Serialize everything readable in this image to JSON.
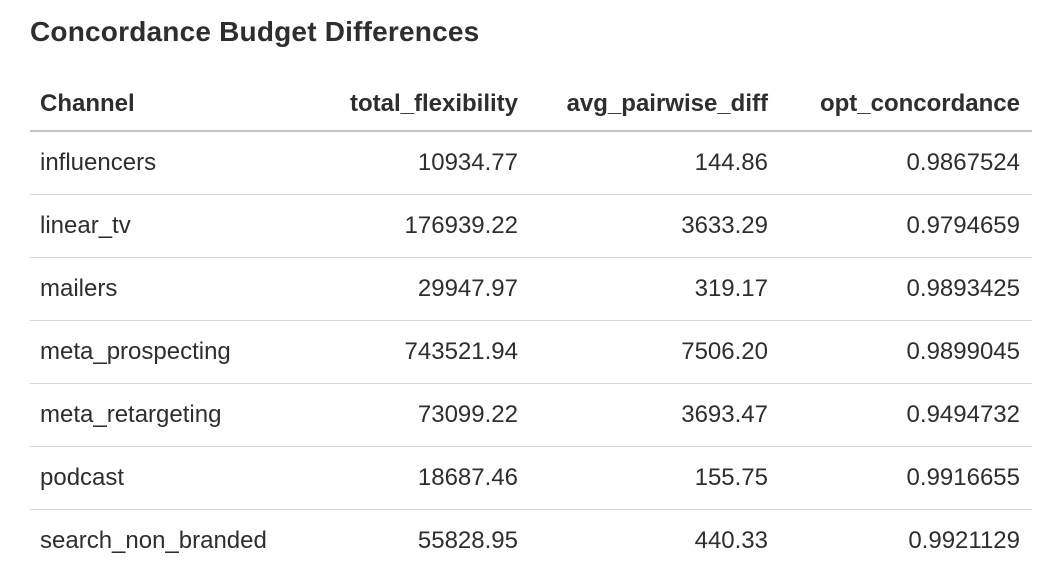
{
  "page": {
    "title": "Concordance Budget Differences"
  },
  "colors": {
    "text": "#2e2e2e",
    "background": "#ffffff",
    "header_border": "#c3c3c3",
    "row_border": "#d6d6d6"
  },
  "table": {
    "columns": [
      {
        "key": "channel",
        "label": "Channel",
        "align": "left"
      },
      {
        "key": "total_flexibility",
        "label": "total_flexibility",
        "align": "right"
      },
      {
        "key": "avg_pairwise_diff",
        "label": "avg_pairwise_diff",
        "align": "right"
      },
      {
        "key": "opt_concordance",
        "label": "opt_concordance",
        "align": "right"
      }
    ],
    "rows": [
      [
        "influencers",
        "10934.77",
        "144.86",
        "0.9867524"
      ],
      [
        "linear_tv",
        "176939.22",
        "3633.29",
        "0.9794659"
      ],
      [
        "mailers",
        "29947.97",
        "319.17",
        "0.9893425"
      ],
      [
        "meta_prospecting",
        "743521.94",
        "7506.20",
        "0.9899045"
      ],
      [
        "meta_retargeting",
        "73099.22",
        "3693.47",
        "0.9494732"
      ],
      [
        "podcast",
        "18687.46",
        "155.75",
        "0.9916655"
      ],
      [
        "search_non_branded",
        "55828.95",
        "440.33",
        "0.9921129"
      ]
    ]
  },
  "chart_data": {
    "type": "table",
    "title": "Concordance Budget Differences",
    "columns": [
      "Channel",
      "total_flexibility",
      "avg_pairwise_diff",
      "opt_concordance"
    ],
    "categories": [
      "influencers",
      "linear_tv",
      "mailers",
      "meta_prospecting",
      "meta_retargeting",
      "podcast",
      "search_non_branded"
    ],
    "series": [
      {
        "name": "total_flexibility",
        "values": [
          10934.77,
          176939.22,
          29947.97,
          743521.94,
          73099.22,
          18687.46,
          55828.95
        ]
      },
      {
        "name": "avg_pairwise_diff",
        "values": [
          144.86,
          3633.29,
          319.17,
          7506.2,
          3693.47,
          155.75,
          440.33
        ]
      },
      {
        "name": "opt_concordance",
        "values": [
          0.9867524,
          0.9794659,
          0.9893425,
          0.9899045,
          0.9494732,
          0.9916655,
          0.9921129
        ]
      }
    ]
  }
}
